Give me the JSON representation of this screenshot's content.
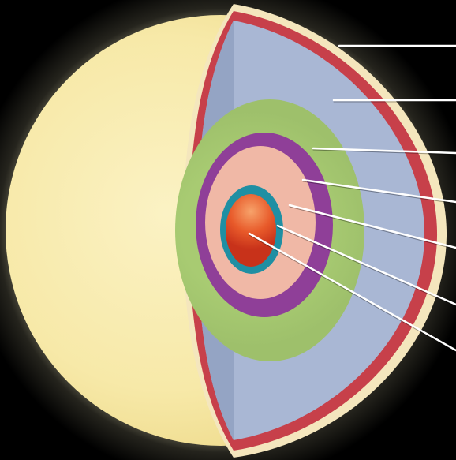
{
  "background_color": "#000000",
  "colors": {
    "glow": "#f6efc2",
    "photosphere": "#f8ecb0",
    "outer_shell": "#c7404a",
    "cut_rim": "#f4e6bd",
    "hydrogen_envelope": "#a9b7d4",
    "hydrogen_envelope_shadow": "#94a4c4",
    "green_shell": "#9fc46a",
    "purple_shell": "#8f3f98",
    "pink_shell": "#f0b8a6",
    "teal_shell": "#1f8fa3",
    "core": "#e14a1f",
    "leader_line": "#ffffff"
  },
  "layers": [
    {
      "name": "outer-shell",
      "label": ""
    },
    {
      "name": "hydrogen-envelope",
      "label": ""
    },
    {
      "name": "green-shell",
      "label": ""
    },
    {
      "name": "purple-shell",
      "label": ""
    },
    {
      "name": "pink-shell",
      "label": ""
    },
    {
      "name": "teal-shell",
      "label": ""
    },
    {
      "name": "core",
      "label": ""
    }
  ]
}
